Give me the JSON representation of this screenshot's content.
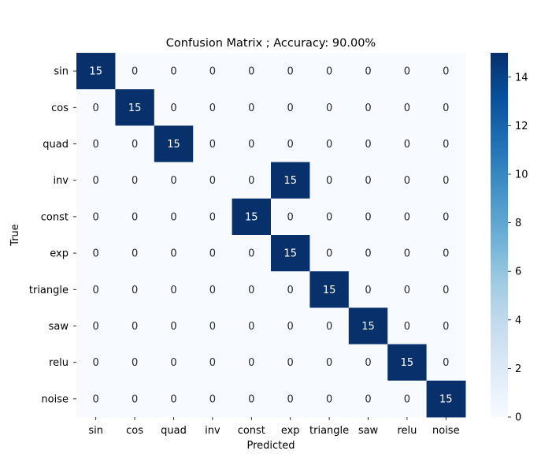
{
  "chart_data": {
    "type": "heatmap",
    "title": "Confusion Matrix ; Accuracy: 90.00%",
    "xlabel": "Predicted",
    "ylabel": "True",
    "x_categories": [
      "sin",
      "cos",
      "quad",
      "inv",
      "const",
      "exp",
      "triangle",
      "saw",
      "relu",
      "noise"
    ],
    "y_categories": [
      "sin",
      "cos",
      "quad",
      "inv",
      "const",
      "exp",
      "triangle",
      "saw",
      "relu",
      "noise"
    ],
    "matrix": [
      [
        15,
        0,
        0,
        0,
        0,
        0,
        0,
        0,
        0,
        0
      ],
      [
        0,
        15,
        0,
        0,
        0,
        0,
        0,
        0,
        0,
        0
      ],
      [
        0,
        0,
        15,
        0,
        0,
        0,
        0,
        0,
        0,
        0
      ],
      [
        0,
        0,
        0,
        0,
        0,
        15,
        0,
        0,
        0,
        0
      ],
      [
        0,
        0,
        0,
        0,
        15,
        0,
        0,
        0,
        0,
        0
      ],
      [
        0,
        0,
        0,
        0,
        0,
        15,
        0,
        0,
        0,
        0
      ],
      [
        0,
        0,
        0,
        0,
        0,
        0,
        15,
        0,
        0,
        0
      ],
      [
        0,
        0,
        0,
        0,
        0,
        0,
        0,
        15,
        0,
        0
      ],
      [
        0,
        0,
        0,
        0,
        0,
        0,
        0,
        0,
        15,
        0
      ],
      [
        0,
        0,
        0,
        0,
        0,
        0,
        0,
        0,
        0,
        15
      ]
    ],
    "colorbar": {
      "range": [
        0,
        15
      ],
      "ticks": [
        0,
        2,
        4,
        6,
        8,
        10,
        12,
        14
      ],
      "colormap": "Blues",
      "low_color": "#f7fbff",
      "high_color": "#08306b"
    },
    "annotation_colors": {
      "dark": "#262626",
      "light": "#ffffff"
    }
  }
}
